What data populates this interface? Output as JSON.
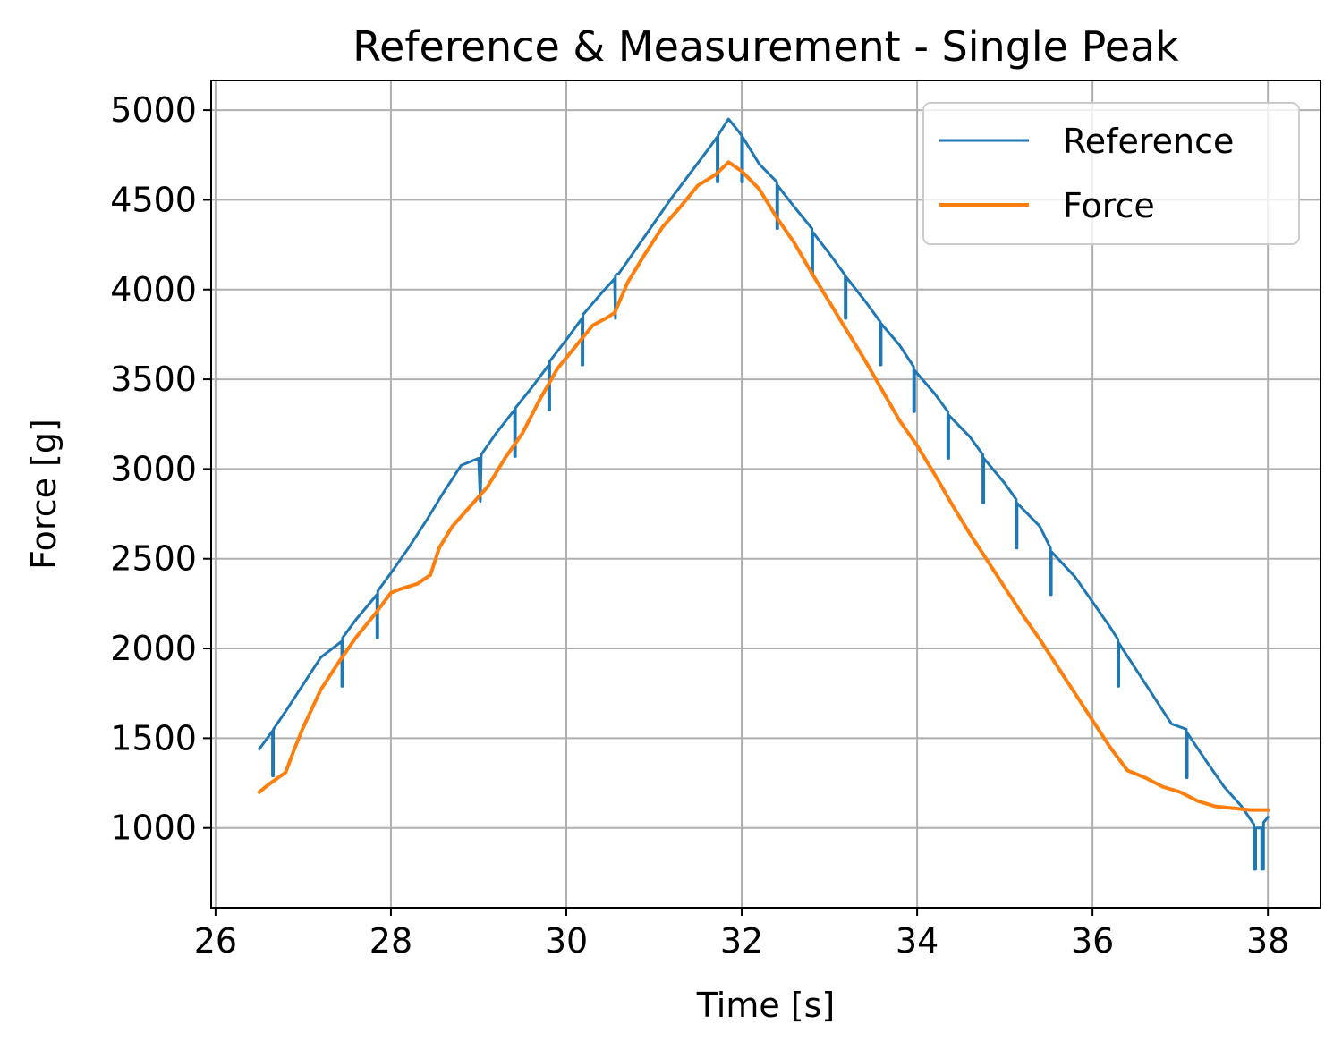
{
  "chart_data": {
    "type": "line",
    "title": "Reference & Measurement - Single Peak",
    "xlabel": "Time [s]",
    "ylabel": "Force [g]",
    "xlim": [
      25.95,
      38.6
    ],
    "ylim": [
      555,
      5165
    ],
    "xticks": [
      26,
      28,
      30,
      32,
      34,
      36,
      38
    ],
    "yticks": [
      1000,
      1500,
      2000,
      2500,
      3000,
      3500,
      4000,
      4500,
      5000
    ],
    "grid": true,
    "legend_position": "upper right",
    "series": [
      {
        "name": "Reference",
        "color": "#1f77b4",
        "x": [
          26.5,
          26.65,
          26.65,
          26.66,
          26.66,
          26.8,
          27.0,
          27.2,
          27.44,
          27.44,
          27.45,
          27.45,
          27.6,
          27.84,
          27.84,
          27.85,
          27.85,
          28.0,
          28.2,
          28.4,
          28.6,
          28.8,
          29.0,
          29.02,
          29.02,
          29.03,
          29.03,
          29.2,
          29.41,
          29.41,
          29.42,
          29.42,
          29.6,
          29.8,
          29.8,
          29.81,
          29.81,
          30.0,
          30.18,
          30.18,
          30.19,
          30.19,
          30.4,
          30.55,
          30.56,
          30.56,
          30.6,
          30.8,
          31.0,
          31.2,
          31.4,
          31.6,
          31.72,
          31.72,
          31.73,
          31.73,
          31.85,
          32.0,
          32.0,
          32.01,
          32.01,
          32.2,
          32.4,
          32.4,
          32.41,
          32.41,
          32.6,
          32.8,
          32.8,
          32.81,
          32.81,
          33.0,
          33.18,
          33.18,
          33.19,
          33.19,
          33.4,
          33.58,
          33.58,
          33.59,
          33.59,
          33.8,
          33.96,
          33.96,
          33.97,
          33.97,
          34.2,
          34.35,
          34.35,
          34.36,
          34.36,
          34.6,
          34.75,
          34.75,
          34.76,
          34.76,
          35.0,
          35.13,
          35.13,
          35.14,
          35.14,
          35.4,
          35.52,
          35.52,
          35.53,
          35.53,
          35.8,
          36.0,
          36.2,
          36.29,
          36.29,
          36.3,
          36.3,
          36.5,
          36.7,
          36.9,
          37.07,
          37.07,
          37.08,
          37.08,
          37.3,
          37.5,
          37.7,
          37.84,
          37.84,
          37.86,
          37.86,
          37.93,
          37.93,
          37.95,
          37.95,
          38.0
        ],
        "y": [
          1440,
          1540,
          1290,
          1290,
          1550,
          1650,
          1800,
          1950,
          2040,
          1790,
          1790,
          2060,
          2160,
          2300,
          2060,
          2060,
          2320,
          2420,
          2560,
          2710,
          2870,
          3020,
          3060,
          2820,
          2820,
          3080,
          3080,
          3200,
          3330,
          3070,
          3070,
          3340,
          3450,
          3580,
          3330,
          3330,
          3600,
          3720,
          3840,
          3580,
          3580,
          3860,
          3980,
          4060,
          3840,
          4080,
          4090,
          4230,
          4370,
          4510,
          4640,
          4770,
          4850,
          4600,
          4600,
          4860,
          4950,
          4860,
          4600,
          4600,
          4850,
          4700,
          4600,
          4340,
          4340,
          4580,
          4460,
          4340,
          4090,
          4090,
          4320,
          4200,
          4080,
          3840,
          3840,
          4070,
          3940,
          3820,
          3580,
          3580,
          3810,
          3690,
          3570,
          3320,
          3320,
          3550,
          3420,
          3320,
          3060,
          3060,
          3300,
          3180,
          3080,
          2810,
          2810,
          3060,
          2920,
          2830,
          2560,
          2560,
          2810,
          2680,
          2560,
          2300,
          2300,
          2540,
          2400,
          2260,
          2120,
          2050,
          1790,
          1790,
          2030,
          1880,
          1730,
          1580,
          1550,
          1280,
          1280,
          1530,
          1370,
          1230,
          1120,
          1020,
          770,
          770,
          1000,
          1000,
          770,
          770,
          1030,
          1060
        ]
      },
      {
        "name": "Force",
        "color": "#ff7f0e",
        "x": [
          26.5,
          26.6,
          26.7,
          26.8,
          26.9,
          27.0,
          27.2,
          27.4,
          27.6,
          27.8,
          28.0,
          28.1,
          28.3,
          28.45,
          28.55,
          28.7,
          28.9,
          29.1,
          29.3,
          29.5,
          29.7,
          29.9,
          30.1,
          30.3,
          30.45,
          30.55,
          30.7,
          30.9,
          31.1,
          31.3,
          31.5,
          31.7,
          31.85,
          32.0,
          32.2,
          32.4,
          32.6,
          32.8,
          33.0,
          33.2,
          33.4,
          33.6,
          33.8,
          34.0,
          34.2,
          34.4,
          34.6,
          34.8,
          35.0,
          35.2,
          35.4,
          35.6,
          35.8,
          36.0,
          36.2,
          36.4,
          36.6,
          36.8,
          37.0,
          37.2,
          37.4,
          37.6,
          37.8,
          38.0
        ],
        "y": [
          1200,
          1240,
          1275,
          1310,
          1440,
          1560,
          1770,
          1920,
          2060,
          2180,
          2310,
          2330,
          2360,
          2410,
          2560,
          2680,
          2790,
          2900,
          3060,
          3200,
          3390,
          3560,
          3680,
          3800,
          3840,
          3870,
          4040,
          4200,
          4350,
          4460,
          4580,
          4640,
          4710,
          4660,
          4560,
          4400,
          4260,
          4090,
          3930,
          3770,
          3610,
          3440,
          3270,
          3130,
          2970,
          2800,
          2640,
          2490,
          2340,
          2190,
          2050,
          1900,
          1750,
          1600,
          1450,
          1320,
          1280,
          1230,
          1200,
          1150,
          1120,
          1110,
          1100,
          1100
        ]
      }
    ]
  }
}
